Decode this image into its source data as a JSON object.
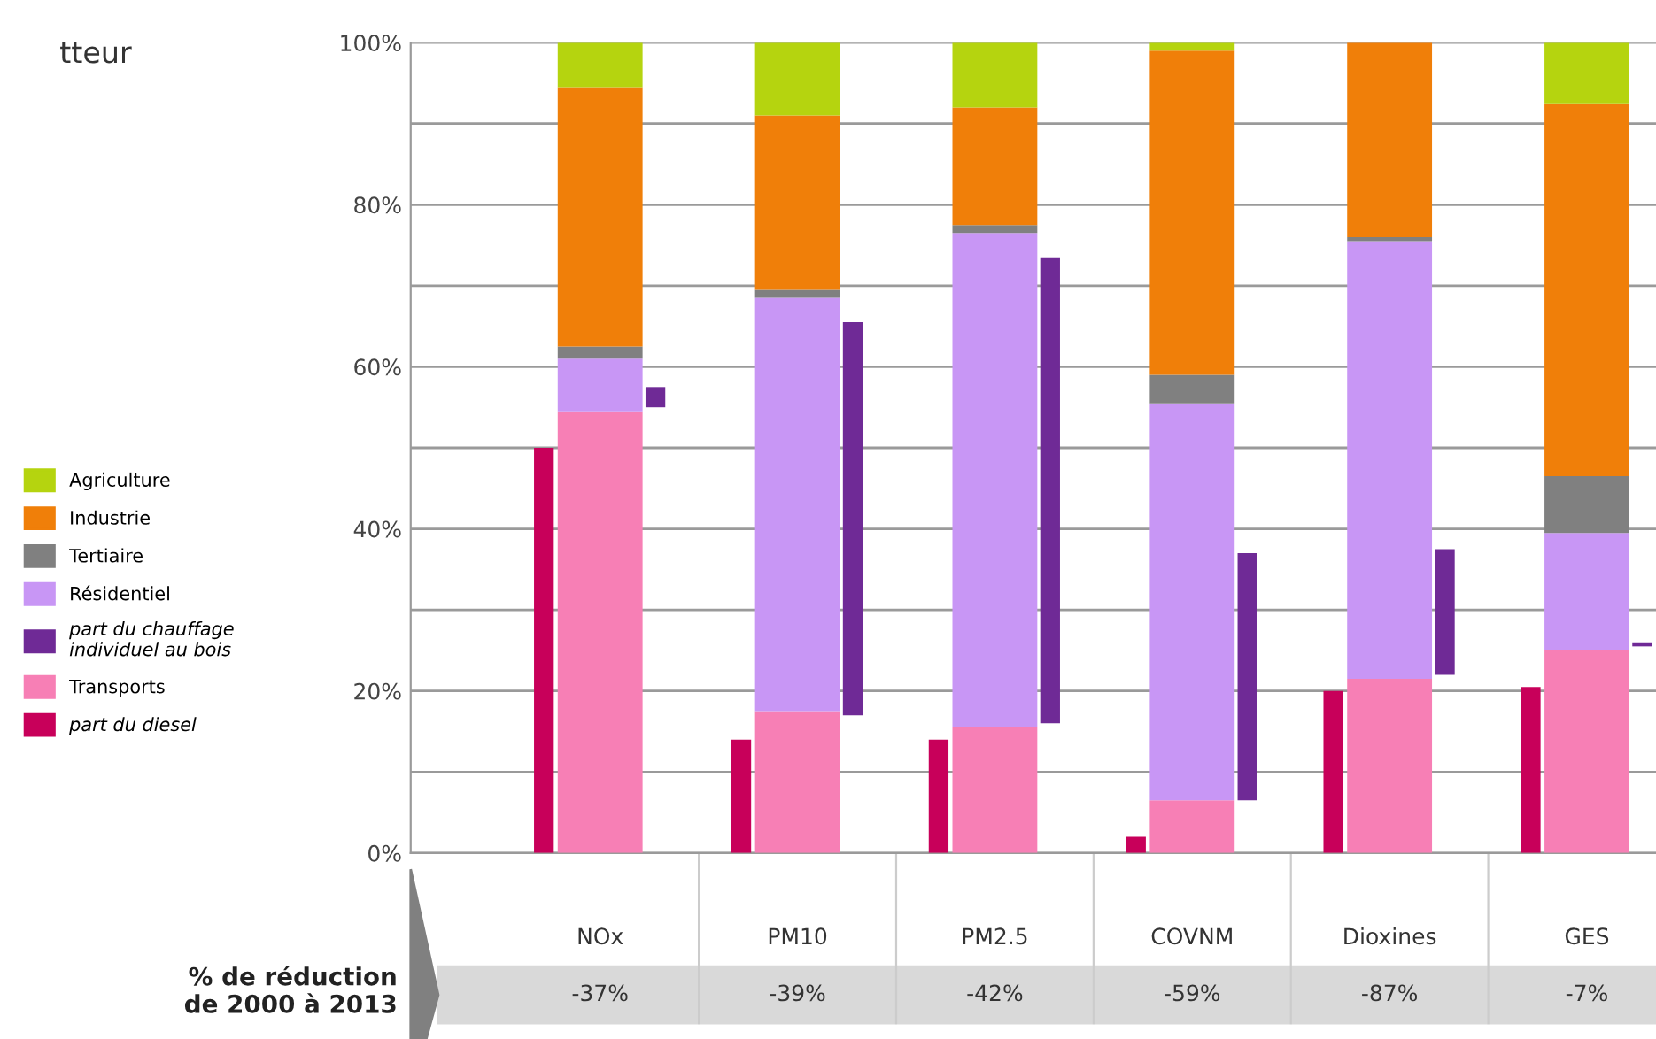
{
  "chart_data": [
    {
      "type": "bar",
      "stacked": true,
      "categories": [
        "NOx",
        "PM10",
        "PM2.5",
        "COVNM",
        "Dioxines",
        "GES"
      ],
      "series": [
        {
          "name": "Transports",
          "color": "#f77fb5",
          "values": [
            54.5,
            17.5,
            15.5,
            6.5,
            21.5,
            25
          ]
        },
        {
          "name": "Résidentiel",
          "color": "#c896f5",
          "values": [
            6.5,
            51,
            61,
            49,
            54,
            14.5
          ]
        },
        {
          "name": "Tertiaire",
          "color": "#808080",
          "values": [
            1.5,
            1,
            1,
            3.5,
            0.5,
            7
          ]
        },
        {
          "name": "Industrie",
          "color": "#f07f09",
          "values": [
            32,
            21.5,
            14.5,
            40,
            24,
            46
          ]
        },
        {
          "name": "Agriculture",
          "color": "#b5d40f",
          "values": [
            5.5,
            9,
            8,
            1,
            0,
            7.5
          ]
        }
      ],
      "ylim": [
        0,
        100
      ],
      "yticks": [
        {
          "value": 0,
          "label": "0%"
        },
        {
          "value": 10,
          "label": null
        },
        {
          "value": 20,
          "label": "20%"
        },
        {
          "value": 30,
          "label": null
        },
        {
          "value": 40,
          "label": "40%"
        },
        {
          "value": 50,
          "label": null
        },
        {
          "value": 60,
          "label": "60%"
        },
        {
          "value": 70,
          "label": null
        },
        {
          "value": 80,
          "label": "80%"
        },
        {
          "value": 90,
          "label": null
        },
        {
          "value": 100,
          "label": "100%"
        }
      ],
      "grid": "y",
      "legend": "left",
      "annotations": [
        "tteur",
        "% de réduction\nde 2000 à 2013",
        "-37%",
        "-39%",
        "-42%",
        "-59%",
        "-87%",
        "-7%"
      ]
    },
    {
      "type": "bar",
      "categories": [
        null,
        null,
        null,
        null,
        null,
        null
      ],
      "series": [
        {
          "name": "part du diesel",
          "color": "#c8005a",
          "base": [
            0,
            0,
            0,
            0,
            0,
            0
          ],
          "values": [
            50,
            14,
            14,
            2,
            20,
            20.5
          ]
        },
        {
          "name": "part du chauffage individuel au bois",
          "color": "#6f2a96",
          "base": [
            55,
            17,
            16,
            6.5,
            22,
            25.5
          ],
          "values": [
            2.5,
            48.5,
            57.5,
            30.5,
            15.5,
            0.5
          ]
        }
      ],
      "ylim": [
        0,
        100
      ],
      "legend": "left"
    }
  ]
}
